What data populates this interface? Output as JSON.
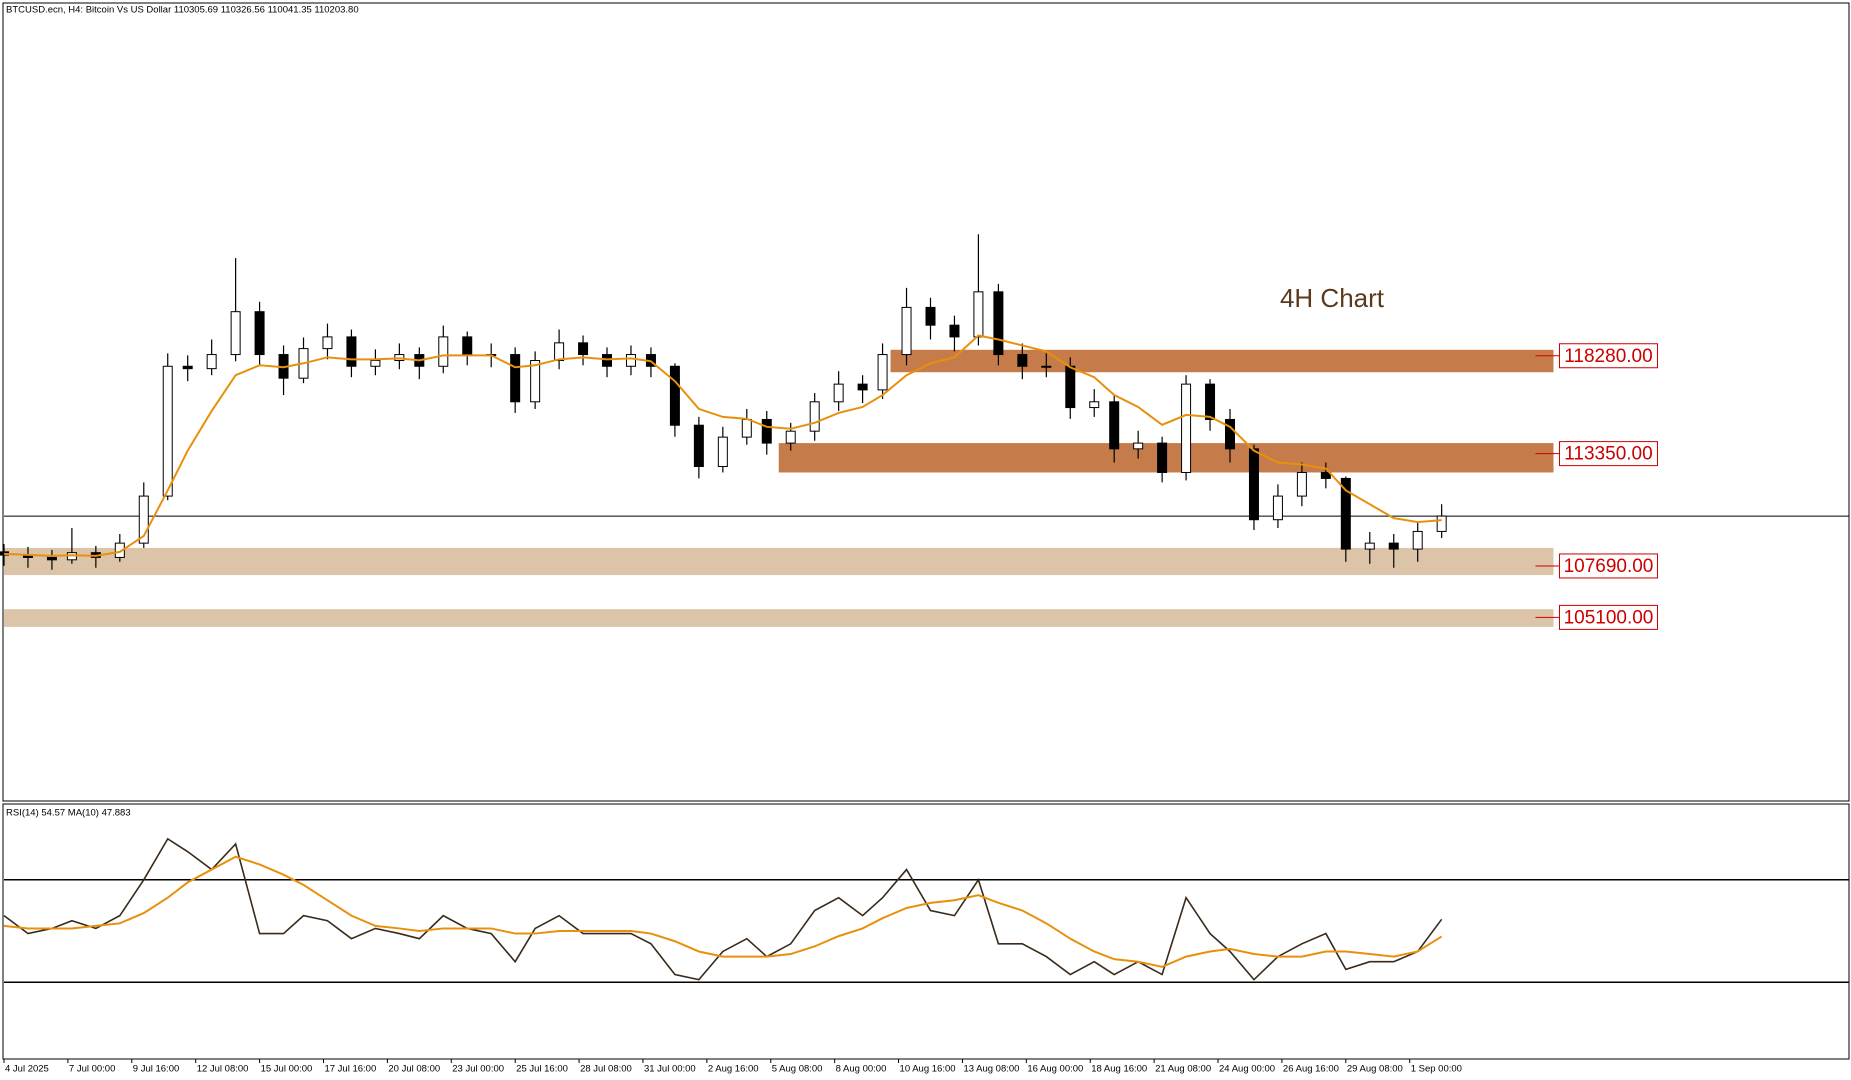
{
  "chart_data": [
    {
      "type": "candlestick",
      "title": "BTCUSD.ecn, H4:  Bitcoin Vs US Dollar  110305.69 110326.56 110041.35 110203.80",
      "annotation": "4H Chart",
      "x": [
        0,
        6,
        12,
        17,
        23,
        29,
        35,
        41,
        46,
        52,
        58,
        64,
        70,
        75,
        81,
        87,
        93,
        99,
        104,
        110,
        116,
        122,
        128,
        133,
        139,
        145,
        151,
        157,
        162,
        168,
        174,
        180,
        186,
        191,
        197,
        203,
        209,
        215,
        220,
        226,
        232,
        238,
        244,
        249,
        255,
        261,
        267,
        273,
        278,
        284,
        290,
        296,
        302,
        307,
        313,
        319,
        325,
        331,
        336,
        342,
        348,
        354,
        360
      ],
      "open": [
        108400,
        108240,
        108120,
        108000,
        108360,
        108120,
        108840,
        111210,
        117750,
        117630,
        118340,
        120500,
        118340,
        117150,
        118640,
        119230,
        117750,
        118040,
        118340,
        117750,
        119230,
        118340,
        118340,
        115960,
        118040,
        118930,
        118340,
        117750,
        118340,
        117750,
        114780,
        112700,
        114180,
        115070,
        113880,
        114480,
        115960,
        116850,
        116560,
        118340,
        120715,
        119820,
        119230,
        121500,
        118340,
        117750,
        117750,
        115670,
        115960,
        113590,
        113880,
        112400,
        116850,
        115070,
        113590,
        110020,
        111210,
        112400,
        112100,
        108540,
        108840,
        108540,
        109430
      ],
      "high": [
        108800,
        108650,
        108500,
        109600,
        108700,
        109300,
        111900,
        118400,
        118300,
        119100,
        123200,
        121000,
        118800,
        119200,
        119900,
        119600,
        118600,
        118900,
        118700,
        119800,
        119500,
        118900,
        118700,
        118500,
        119600,
        119300,
        118700,
        118800,
        118700,
        117900,
        115200,
        114700,
        115600,
        115500,
        114900,
        116400,
        117500,
        117300,
        118900,
        121700,
        121200,
        120300,
        124400,
        121900,
        118900,
        118400,
        118200,
        116600,
        116300,
        114500,
        114200,
        117300,
        117100,
        115600,
        113800,
        111800,
        112900,
        112900,
        112200,
        109400,
        109300,
        109900,
        110800
      ],
      "low": [
        107700,
        107600,
        107500,
        107800,
        107600,
        107900,
        108600,
        111000,
        117000,
        117300,
        118000,
        117800,
        116300,
        116900,
        118100,
        117200,
        117300,
        117600,
        117100,
        117400,
        117800,
        117700,
        115400,
        115600,
        117600,
        117800,
        117200,
        117300,
        117200,
        114200,
        112100,
        112400,
        113800,
        113300,
        113500,
        114000,
        115500,
        115900,
        116100,
        117800,
        119100,
        118500,
        118800,
        117800,
        117100,
        117200,
        115100,
        115200,
        112900,
        113100,
        111900,
        112000,
        114500,
        112900,
        109500,
        109600,
        110700,
        111600,
        107900,
        107800,
        107600,
        107900,
        109100
      ],
      "close": [
        108240,
        108120,
        108000,
        108360,
        108120,
        108840,
        111210,
        117750,
        117630,
        118340,
        120500,
        118340,
        117150,
        118640,
        119230,
        117750,
        118040,
        118340,
        117750,
        119230,
        118340,
        118340,
        115960,
        118040,
        118930,
        118340,
        117750,
        118340,
        117750,
        114780,
        112700,
        114180,
        115070,
        113880,
        114480,
        115960,
        116850,
        116560,
        118340,
        120715,
        119820,
        119230,
        121500,
        118340,
        117750,
        117750,
        115670,
        115960,
        113590,
        113880,
        112400,
        116850,
        115070,
        113590,
        110020,
        111210,
        112400,
        112100,
        108540,
        108840,
        108540,
        109430,
        110203.8
      ],
      "overlay": {
        "color": "#e8900c",
        "values": [
          108300,
          108250,
          108200,
          108230,
          108200,
          108400,
          109200,
          111500,
          113500,
          115500,
          117300,
          117800,
          117700,
          117900,
          118200,
          118100,
          118100,
          118150,
          118050,
          118300,
          118300,
          118300,
          117700,
          117800,
          118100,
          118200,
          118100,
          118150,
          118000,
          117000,
          115600,
          115200,
          115100,
          114700,
          114600,
          114900,
          115400,
          115700,
          116300,
          117300,
          117900,
          118200,
          119300,
          119100,
          118800,
          118500,
          117700,
          117200,
          116300,
          115700,
          114800,
          115300,
          115200,
          114700,
          113500,
          112900,
          112800,
          112600,
          111500,
          110800,
          110100,
          109900,
          110000
        ]
      },
      "zones": [
        {
          "value": 118280,
          "label": "118280.00",
          "top": 118580,
          "bottom": 117450,
          "start": 222,
          "end": 388,
          "color": "#c57c4a"
        },
        {
          "value": 113350,
          "label": "113350.00",
          "top": 113880,
          "bottom": 112400,
          "start": 194,
          "end": 388,
          "color": "#c57c4a"
        },
        {
          "value": 107690,
          "label": "107690.00",
          "top": 108600,
          "bottom": 107230,
          "start": 0,
          "end": 388,
          "color": "#dcc4a8"
        },
        {
          "value": 105100,
          "label": "105100.00",
          "top": 105510,
          "bottom": 104620,
          "start": 0,
          "end": 388,
          "color": "#dcc4a8"
        }
      ],
      "xlim": [
        0,
        462
      ],
      "ylim": [
        95900,
        136000
      ]
    },
    {
      "type": "line",
      "title": "RSI(14) 54.57 MA(10) 47.883",
      "series": [
        {
          "color": "#3a2a1a",
          "values": [
            56,
            49,
            51,
            54,
            51,
            56,
            70,
            86,
            81,
            74,
            84,
            49,
            49,
            56,
            54,
            47,
            51,
            49,
            47,
            56,
            51,
            49,
            38,
            51,
            56,
            49,
            49,
            49,
            45,
            33,
            31,
            42,
            47,
            40,
            45,
            58,
            63,
            56,
            63,
            74,
            58,
            56,
            70,
            45,
            45,
            40,
            33,
            38,
            33,
            38,
            33,
            63,
            49,
            42,
            31,
            40,
            45,
            49,
            35,
            38,
            38,
            42,
            54.57
          ]
        },
        {
          "color": "#e8900c",
          "values": [
            52,
            51,
            51,
            51,
            52,
            53,
            57,
            63,
            69,
            74,
            79,
            76,
            72,
            68,
            62,
            56,
            52,
            51,
            50,
            51,
            51,
            51,
            49,
            49,
            50,
            50,
            50,
            50,
            49,
            46,
            42,
            40,
            40,
            40,
            41,
            44,
            48,
            51,
            55,
            59,
            61,
            62,
            64,
            61,
            58,
            53,
            47,
            42,
            39,
            38,
            36,
            40,
            42,
            43,
            41,
            40,
            40,
            42,
            42,
            41,
            40,
            42,
            47.883
          ]
        }
      ],
      "levels": [
        70,
        30
      ],
      "ylim": [
        0,
        100
      ],
      "xticks": [
        {
          "value": 0,
          "label": "4 Jul 2025"
        },
        {
          "value": 16,
          "label": "7 Jul 00:00"
        },
        {
          "value": 32,
          "label": "9 Jul 16:00"
        },
        {
          "value": 48,
          "label": "12 Jul 08:00"
        },
        {
          "value": 64,
          "label": "15 Jul 00:00"
        },
        {
          "value": 80,
          "label": "17 Jul 16:00"
        },
        {
          "value": 96,
          "label": "20 Jul 08:00"
        },
        {
          "value": 112,
          "label": "23 Jul 00:00"
        },
        {
          "value": 128,
          "label": "25 Jul 16:00"
        },
        {
          "value": 144,
          "label": "28 Jul 08:00"
        },
        {
          "value": 160,
          "label": "31 Jul 00:00"
        },
        {
          "value": 176,
          "label": "2 Aug 16:00"
        },
        {
          "value": 192,
          "label": "5 Aug 08:00"
        },
        {
          "value": 208,
          "label": "8 Aug 00:00"
        },
        {
          "value": 224,
          "label": "10 Aug 16:00"
        },
        {
          "value": 240,
          "label": "13 Aug 08:00"
        },
        {
          "value": 256,
          "label": "16 Aug 00:00"
        },
        {
          "value": 272,
          "label": "18 Aug 16:00"
        },
        {
          "value": 288,
          "label": "21 Aug 08:00"
        },
        {
          "value": 304,
          "label": "24 Aug 00:00"
        },
        {
          "value": 320,
          "label": "26 Aug 16:00"
        },
        {
          "value": 336,
          "label": "29 Aug 08:00"
        },
        {
          "value": 352,
          "label": "1 Sep 00:00"
        }
      ]
    }
  ]
}
